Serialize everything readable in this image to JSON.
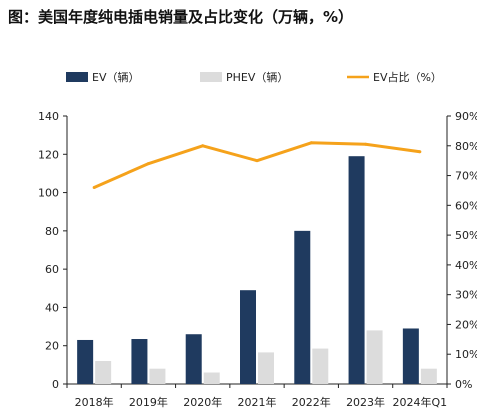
{
  "title": "图：美国年度纯电插电销量及占比变化（万辆，%）",
  "colors": {
    "ev": "#1f3a5f",
    "phev": "#dcdcdc",
    "ratio": "#f5a21b",
    "axis": "#222222"
  },
  "legend": [
    {
      "name": "EV（辆）",
      "kind": "bar",
      "color": "#1f3a5f"
    },
    {
      "name": "PHEV（辆）",
      "kind": "bar",
      "color": "#dcdcdc"
    },
    {
      "name": "EV占比（%）",
      "kind": "line",
      "color": "#f5a21b"
    }
  ],
  "chart_data": {
    "type": "bar",
    "categories": [
      "2018年",
      "2019年",
      "2020年",
      "2021年",
      "2022年",
      "2023年",
      "2024年Q1"
    ],
    "series": [
      {
        "name": "EV（辆）",
        "type": "bar",
        "axis": "left",
        "values": [
          23,
          23.5,
          26,
          49,
          80,
          119,
          29
        ]
      },
      {
        "name": "PHEV（辆）",
        "type": "bar",
        "axis": "left",
        "values": [
          12,
          8,
          6,
          16.5,
          18.5,
          28,
          8
        ]
      },
      {
        "name": "EV占比（%）",
        "type": "line",
        "axis": "right",
        "values": [
          66,
          74,
          80,
          75,
          81,
          80.5,
          78
        ]
      }
    ],
    "ylim": [
      0,
      140
    ],
    "yticks": [
      "0",
      "20",
      "40",
      "60",
      "80",
      "100",
      "120",
      "140"
    ],
    "y2lim": [
      0,
      90
    ],
    "y2ticks": [
      "0%",
      "10%",
      "20%",
      "30%",
      "40%",
      "50%",
      "60%",
      "70%",
      "80%",
      "90%"
    ],
    "grid": false,
    "legend_position": "top"
  }
}
